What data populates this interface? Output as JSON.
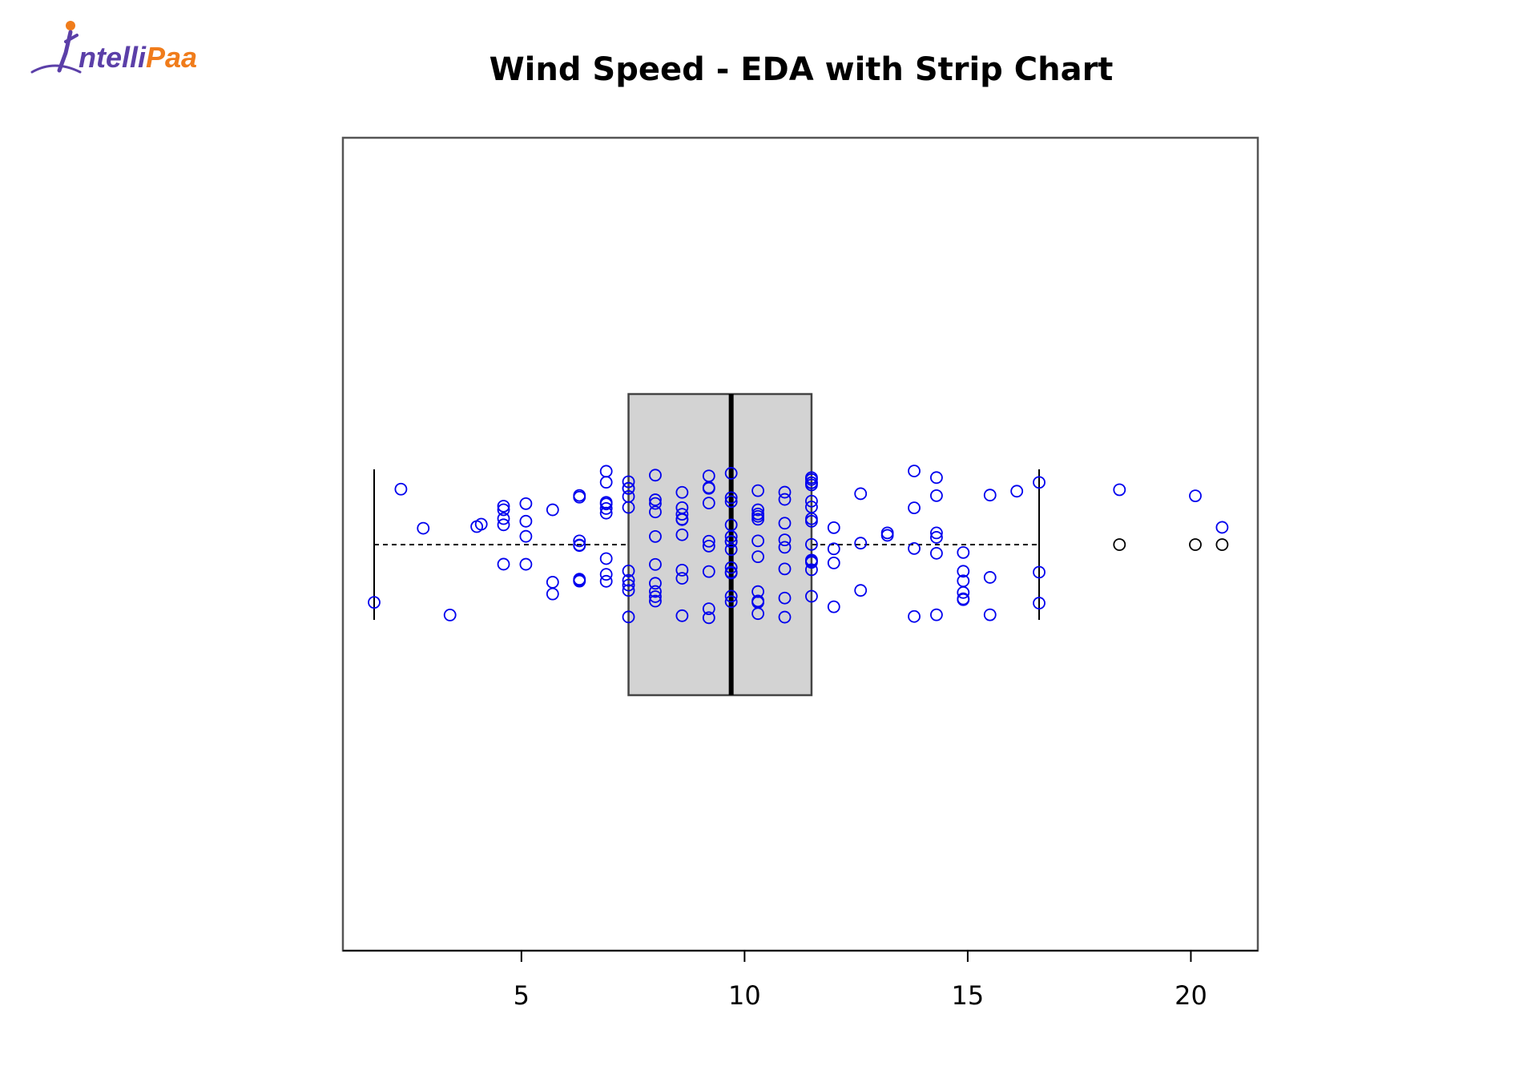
{
  "logo": {
    "text_dark": "ntelli",
    "text_orange": "Paa",
    "initial": "I",
    "colors": {
      "purple": "#5b3fa8",
      "orange": "#f07c1b"
    }
  },
  "chart_data": {
    "type": "boxplot",
    "orientation": "horizontal",
    "title": "Wind Speed - EDA with Strip Chart",
    "xlabel": "",
    "ylabel": "",
    "xlim": [
      1.0,
      21.5
    ],
    "x_ticks": [
      5,
      10,
      15,
      20
    ],
    "x_tick_labels": [
      "5",
      "10",
      "15",
      "20"
    ],
    "grid": false,
    "box": {
      "whisker_low": 1.7,
      "q1": 7.4,
      "median": 9.7,
      "q3": 11.5,
      "whisker_high": 16.6,
      "outliers": [
        18.4,
        20.1,
        20.7
      ],
      "fill_color": "#d3d3d3",
      "border_color": "#444444"
    },
    "strip": {
      "marker": "open-circle",
      "color": "#0000ee",
      "values": [
        1.7,
        2.3,
        2.8,
        3.4,
        4.0,
        4.1,
        4.6,
        4.6,
        4.6,
        4.6,
        4.6,
        5.1,
        5.1,
        5.1,
        5.1,
        5.7,
        5.7,
        5.7,
        6.3,
        6.3,
        6.3,
        6.3,
        6.3,
        6.3,
        6.3,
        6.3,
        6.9,
        6.9,
        6.9,
        6.9,
        6.9,
        6.9,
        6.9,
        6.9,
        6.9,
        7.4,
        7.4,
        7.4,
        7.4,
        7.4,
        7.4,
        7.4,
        7.4,
        7.4,
        7.4,
        8.0,
        8.0,
        8.0,
        8.0,
        8.0,
        8.0,
        8.0,
        8.0,
        8.0,
        8.0,
        8.6,
        8.6,
        8.6,
        8.6,
        8.6,
        8.6,
        8.6,
        8.6,
        8.6,
        9.2,
        9.2,
        9.2,
        9.2,
        9.2,
        9.2,
        9.2,
        9.2,
        9.2,
        9.7,
        9.7,
        9.7,
        9.7,
        9.7,
        9.7,
        9.7,
        9.7,
        9.7,
        9.7,
        9.7,
        9.7,
        9.7,
        10.3,
        10.3,
        10.3,
        10.3,
        10.3,
        10.3,
        10.3,
        10.3,
        10.3,
        10.3,
        10.3,
        10.9,
        10.9,
        10.9,
        10.9,
        10.9,
        10.9,
        10.9,
        10.9,
        11.5,
        11.5,
        11.5,
        11.5,
        11.5,
        11.5,
        11.5,
        11.5,
        11.5,
        11.5,
        11.5,
        11.5,
        11.5,
        11.5,
        11.5,
        12.0,
        12.0,
        12.0,
        12.0,
        12.6,
        12.6,
        12.6,
        13.2,
        13.2,
        13.8,
        13.8,
        13.8,
        13.8,
        14.3,
        14.3,
        14.3,
        14.3,
        14.3,
        14.3,
        14.9,
        14.9,
        14.9,
        14.9,
        14.9,
        14.9,
        15.5,
        15.5,
        15.5,
        16.1,
        16.6,
        16.6,
        16.6,
        18.4,
        20.1,
        20.7
      ]
    }
  }
}
